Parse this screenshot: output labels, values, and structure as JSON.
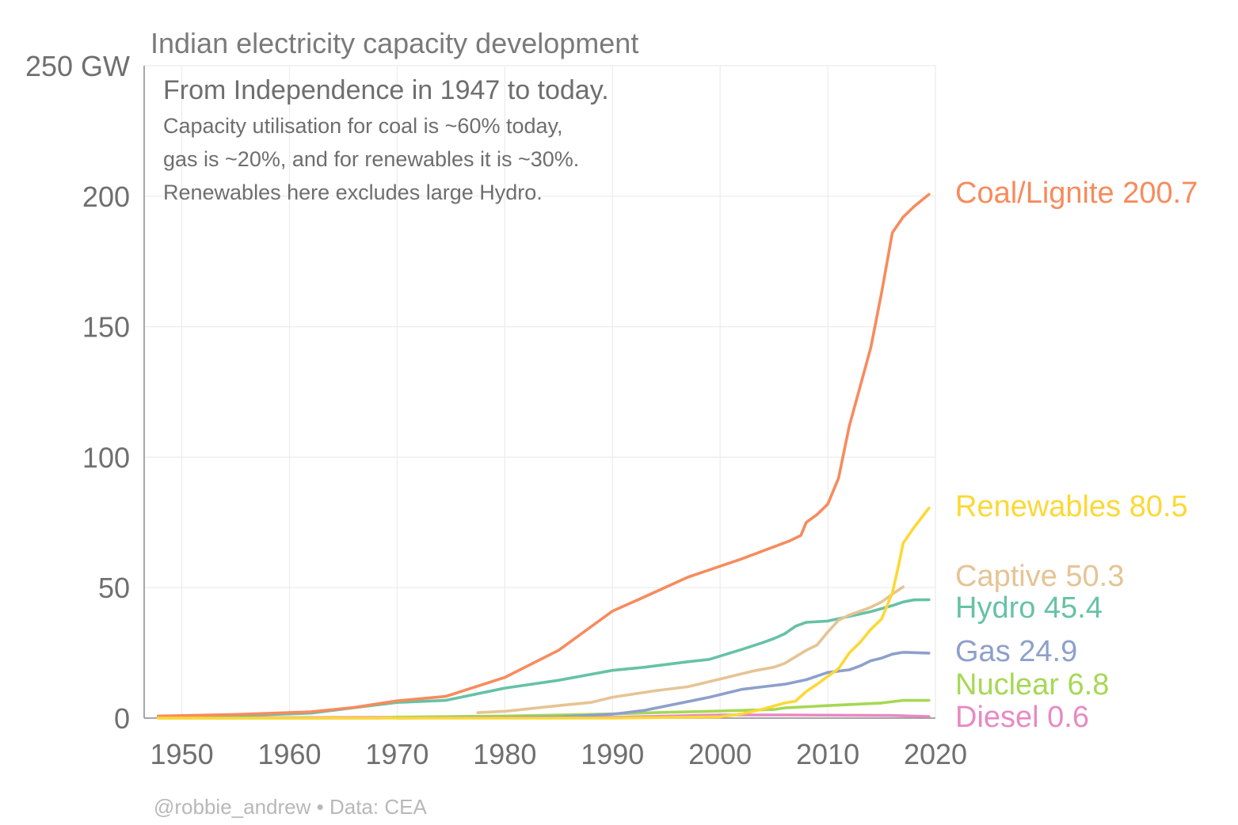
{
  "chart_data": {
    "type": "line",
    "title": "Indian electricity capacity development",
    "subtitle": "From Independence in 1947 to today.",
    "notes": [
      "Capacity utilisation for coal is ~60% today,",
      "gas is ~20%, and for renewables it is ~30%.",
      "Renewables here excludes large Hydro."
    ],
    "ylabel": "",
    "xlabel": "",
    "xlim": [
      1946.5,
      2020
    ],
    "ylim": [
      0,
      250
    ],
    "x_ticks": [
      1950,
      1960,
      1970,
      1980,
      1990,
      2000,
      2010,
      2020
    ],
    "y_ticks": [
      {
        "value": 0,
        "label": "0"
      },
      {
        "value": 50,
        "label": "50"
      },
      {
        "value": 100,
        "label": "100"
      },
      {
        "value": 150,
        "label": "150"
      },
      {
        "value": 200,
        "label": "200"
      },
      {
        "value": 250,
        "label": "250 GW"
      }
    ],
    "grid": true,
    "legend": "direct labels at line ends",
    "series": [
      {
        "name": "Coal/Lignite",
        "end_label": "Coal/Lignite 200.7",
        "color": "#f78b5d",
        "points": [
          [
            1947.8,
            0.8
          ],
          [
            1955,
            1.4
          ],
          [
            1962,
            2.4
          ],
          [
            1966,
            4.1
          ],
          [
            1970,
            6.6
          ],
          [
            1974.5,
            8.3
          ],
          [
            1980,
            15.6
          ],
          [
            1985,
            26
          ],
          [
            1990,
            41
          ],
          [
            1993,
            46.5
          ],
          [
            1997,
            54
          ],
          [
            2002,
            61
          ],
          [
            2006.5,
            68
          ],
          [
            2007.5,
            70
          ],
          [
            2008,
            75
          ],
          [
            2009,
            78
          ],
          [
            2010,
            82
          ],
          [
            2011,
            92
          ],
          [
            2012,
            112
          ],
          [
            2013,
            127
          ],
          [
            2014,
            142
          ],
          [
            2015,
            163
          ],
          [
            2016,
            186
          ],
          [
            2017,
            192
          ],
          [
            2018,
            196
          ],
          [
            2019.4,
            200.7
          ]
        ]
      },
      {
        "name": "Renewables",
        "end_label": "Renewables 80.5",
        "color": "#fdd835",
        "points": [
          [
            1947.8,
            0
          ],
          [
            1990,
            0
          ],
          [
            2000,
            0.5
          ],
          [
            2002,
            1.6
          ],
          [
            2004,
            3.5
          ],
          [
            2006,
            5.8
          ],
          [
            2007,
            6.5
          ],
          [
            2008,
            10.2
          ],
          [
            2009,
            13
          ],
          [
            2010,
            16
          ],
          [
            2011,
            19
          ],
          [
            2012,
            25
          ],
          [
            2013,
            29
          ],
          [
            2014,
            34
          ],
          [
            2015,
            38
          ],
          [
            2016,
            48
          ],
          [
            2016.5,
            57
          ],
          [
            2017,
            67
          ],
          [
            2018,
            73
          ],
          [
            2019.4,
            80.5
          ]
        ]
      },
      {
        "name": "Captive",
        "end_label": "Captive 50.3",
        "color": "#e5c494",
        "points": [
          [
            1977.5,
            2.1
          ],
          [
            1980,
            2.6
          ],
          [
            1985,
            4.8
          ],
          [
            1988,
            6
          ],
          [
            1990,
            8
          ],
          [
            1994,
            10.5
          ],
          [
            1997,
            12
          ],
          [
            2000,
            15
          ],
          [
            2003,
            18
          ],
          [
            2005,
            19.5
          ],
          [
            2006,
            21
          ],
          [
            2008,
            26
          ],
          [
            2009,
            28
          ],
          [
            2010,
            33
          ],
          [
            2011,
            37.5
          ],
          [
            2012,
            39.5
          ],
          [
            2013,
            41
          ],
          [
            2014,
            42.5
          ],
          [
            2015,
            44.5
          ],
          [
            2016,
            47.5
          ],
          [
            2017,
            50.3
          ]
        ]
      },
      {
        "name": "Hydro",
        "end_label": "Hydro 45.4",
        "color": "#66c2a5",
        "points": [
          [
            1947.8,
            0.5
          ],
          [
            1955,
            0.9
          ],
          [
            1962,
            1.9
          ],
          [
            1966,
            4
          ],
          [
            1970,
            6
          ],
          [
            1974.5,
            6.8
          ],
          [
            1980,
            11.5
          ],
          [
            1985,
            14.5
          ],
          [
            1990,
            18.3
          ],
          [
            1993,
            19.5
          ],
          [
            1997,
            21.6
          ],
          [
            1999,
            22.5
          ],
          [
            2002,
            26.3
          ],
          [
            2004,
            29
          ],
          [
            2005,
            30.5
          ],
          [
            2006,
            32.3
          ],
          [
            2007,
            35.2
          ],
          [
            2008,
            36.7
          ],
          [
            2010,
            37.2
          ],
          [
            2012,
            39
          ],
          [
            2014,
            40.8
          ],
          [
            2016,
            43.1
          ],
          [
            2017,
            44.5
          ],
          [
            2018,
            45.3
          ],
          [
            2019.4,
            45.4
          ]
        ]
      },
      {
        "name": "Gas",
        "end_label": "Gas 24.9",
        "color": "#8da0cb",
        "points": [
          [
            1970,
            0
          ],
          [
            1980,
            0.3
          ],
          [
            1985,
            0.5
          ],
          [
            1990,
            1.5
          ],
          [
            1993,
            3
          ],
          [
            1996,
            5.5
          ],
          [
            1999,
            8
          ],
          [
            2002,
            11
          ],
          [
            2004,
            12
          ],
          [
            2006,
            13
          ],
          [
            2008,
            14.7
          ],
          [
            2010,
            17.5
          ],
          [
            2012,
            18.5
          ],
          [
            2013,
            20
          ],
          [
            2014,
            22
          ],
          [
            2015,
            23
          ],
          [
            2016,
            24.5
          ],
          [
            2017,
            25.2
          ],
          [
            2019.4,
            24.9
          ]
        ]
      },
      {
        "name": "Nuclear",
        "end_label": "Nuclear 6.8",
        "color": "#a6d854",
        "points": [
          [
            1947.8,
            0
          ],
          [
            1968.5,
            0
          ],
          [
            1970,
            0.4
          ],
          [
            1980,
            0.8
          ],
          [
            1990,
            1.6
          ],
          [
            1995,
            2.2
          ],
          [
            2000,
            2.7
          ],
          [
            2005,
            3.3
          ],
          [
            2006,
            3.9
          ],
          [
            2010,
            4.8
          ],
          [
            2015,
            5.8
          ],
          [
            2017,
            6.8
          ],
          [
            2019.4,
            6.8
          ]
        ]
      },
      {
        "name": "Diesel",
        "end_label": "Diesel 0.6",
        "color": "#e78ac3",
        "points": [
          [
            1947.8,
            0.1
          ],
          [
            1970,
            0.3
          ],
          [
            1990,
            0.3
          ],
          [
            2000,
            1.2
          ],
          [
            2006,
            1.2
          ],
          [
            2016,
            1.0
          ],
          [
            2019.4,
            0.6
          ]
        ]
      }
    ],
    "credit": "@robbie_andrew  •  Data: CEA"
  }
}
